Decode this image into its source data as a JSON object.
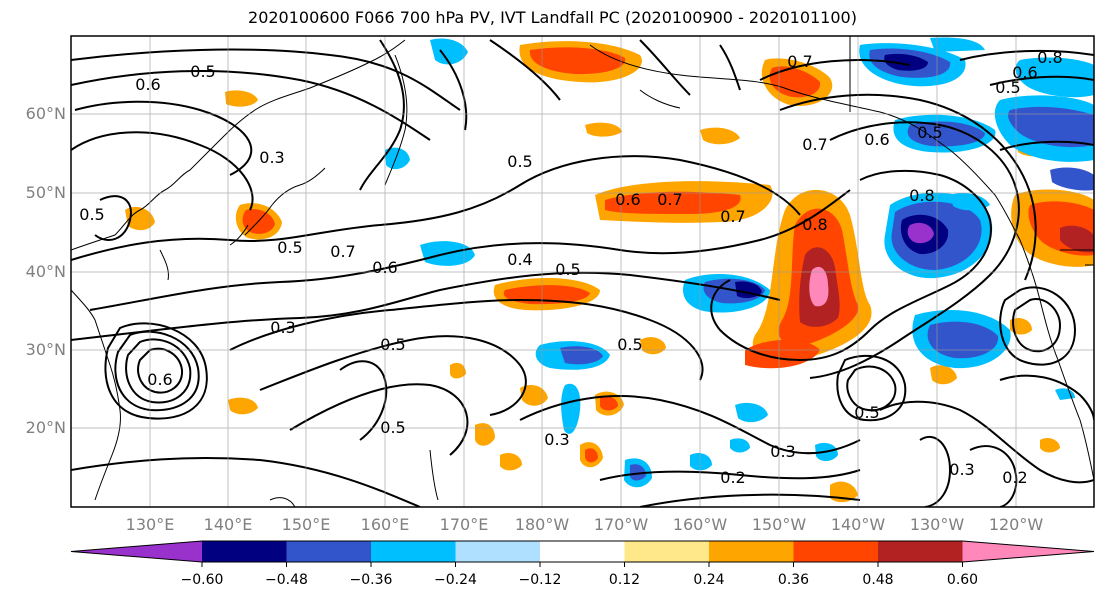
{
  "title": "2020100600 F066 700 hPa PV, IVT Landfall PC (2020100900 - 2020101100)",
  "lat_labels": [
    "60°N",
    "50°N",
    "40°N",
    "30°N",
    "20°N"
  ],
  "lon_labels": [
    "130°E",
    "140°E",
    "150°E",
    "160°E",
    "170°E",
    "180°W",
    "170°W",
    "160°W",
    "150°W",
    "140°W",
    "130°W",
    "120°W"
  ],
  "colorbar": {
    "ticks": [
      "−0.60",
      "−0.48",
      "−0.36",
      "−0.24",
      "−0.12",
      "0.12",
      "0.24",
      "0.36",
      "0.48",
      "0.60"
    ],
    "colors": [
      "#9932cc",
      "#000080",
      "#3355cc",
      "#00bfff",
      "#b0e0ff",
      "#ffffff",
      "#ffe88a",
      "#ffa500",
      "#ff4500",
      "#b22222",
      "#ff88bb"
    ]
  },
  "contour_labels": [
    {
      "text": "0.6"
    },
    {
      "text": "0.5"
    },
    {
      "text": "0.3"
    },
    {
      "text": "0.5"
    },
    {
      "text": "0.5"
    },
    {
      "text": "0.7"
    },
    {
      "text": "0.6"
    },
    {
      "text": "0.3"
    },
    {
      "text": "0.5"
    },
    {
      "text": "0.5"
    },
    {
      "text": "0.4"
    },
    {
      "text": "0.5"
    },
    {
      "text": "0.6"
    },
    {
      "text": "0.7"
    },
    {
      "text": "0.7"
    },
    {
      "text": "0.8"
    },
    {
      "text": "0.6"
    },
    {
      "text": "0.8"
    },
    {
      "text": "0.5"
    },
    {
      "text": "0.3"
    },
    {
      "text": "0.2"
    },
    {
      "text": "0.3"
    },
    {
      "text": "0.2"
    },
    {
      "text": "0.5"
    },
    {
      "text": "0.3"
    },
    {
      "text": "0.7"
    },
    {
      "text": "0.6"
    },
    {
      "text": "0.5"
    },
    {
      "text": "0.8"
    },
    {
      "text": "0.7"
    },
    {
      "text": "0.5"
    },
    {
      "text": "0.6"
    },
    {
      "text": "0.5"
    }
  ]
}
